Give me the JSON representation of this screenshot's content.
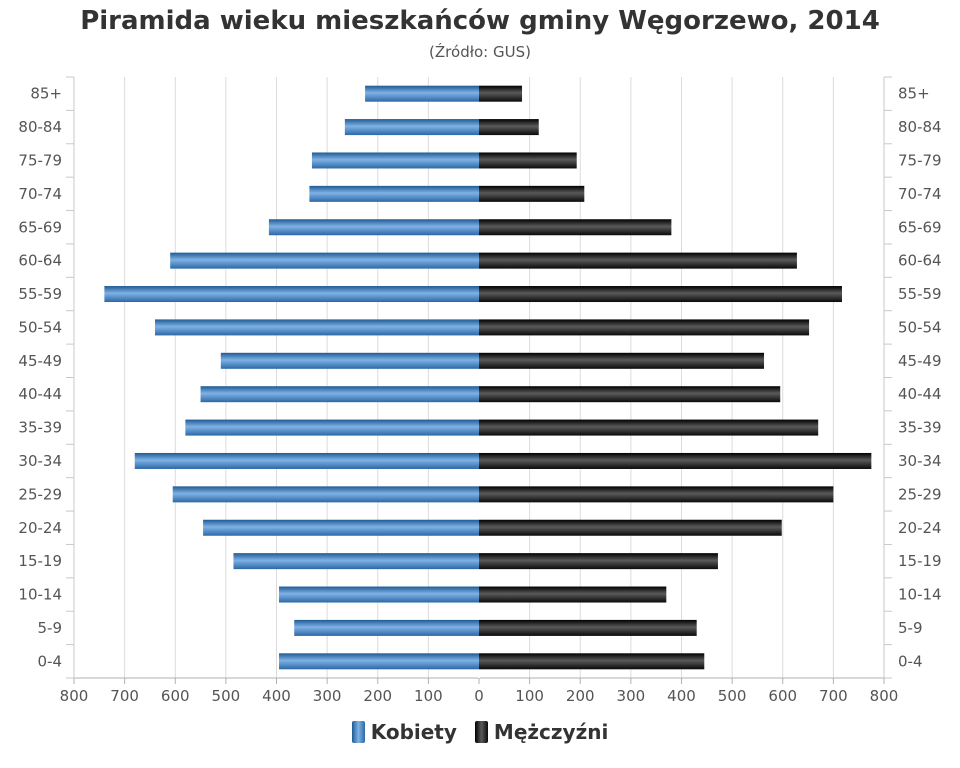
{
  "chart_data": {
    "type": "bar",
    "orientation": "horizontal-pyramid",
    "title": "Piramida wieku mieszkańców gminy Węgorzewo, 2014",
    "subtitle": "(Źródło: GUS)",
    "categories": [
      "0-4",
      "5-9",
      "10-14",
      "15-19",
      "20-24",
      "25-29",
      "30-34",
      "35-39",
      "40-44",
      "45-49",
      "50-54",
      "55-59",
      "60-64",
      "65-69",
      "70-74",
      "75-79",
      "80-84",
      "85+"
    ],
    "series": [
      {
        "name": "Kobiety",
        "color": "#3d7fc1",
        "values": [
          395,
          365,
          395,
          485,
          545,
          605,
          680,
          580,
          550,
          510,
          640,
          740,
          610,
          415,
          335,
          330,
          265,
          225
        ]
      },
      {
        "name": "Mężczyźni",
        "color": "#1a1a1a",
        "values": [
          445,
          430,
          370,
          472,
          598,
          700,
          775,
          670,
          595,
          563,
          652,
          717,
          628,
          380,
          208,
          193,
          118,
          85
        ]
      }
    ],
    "x_ticks": [
      "800",
      "700",
      "600",
      "500",
      "400",
      "300",
      "200",
      "100",
      "0",
      "100",
      "200",
      "300",
      "400",
      "500",
      "600",
      "700",
      "800"
    ],
    "xlim": [
      -800,
      800
    ],
    "grid": true,
    "legend_position": "bottom"
  }
}
